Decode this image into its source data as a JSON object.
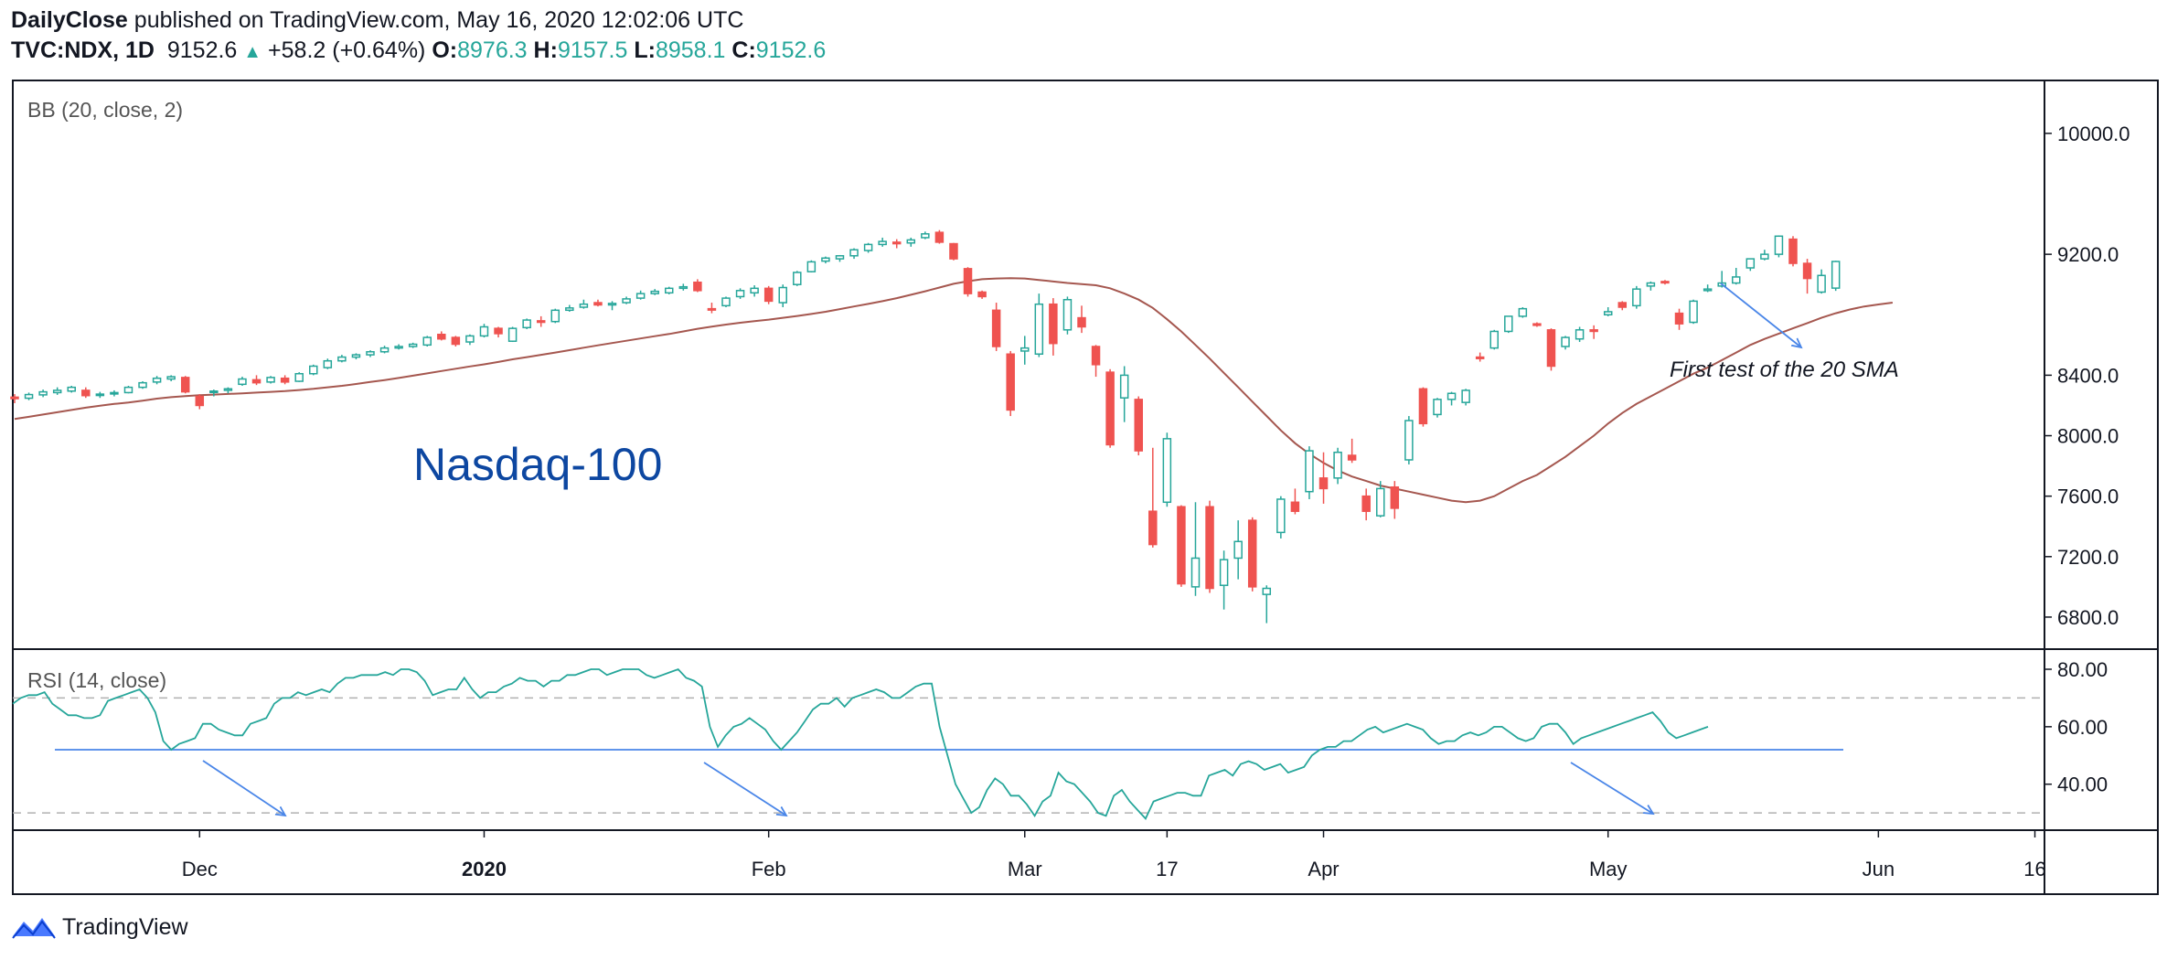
{
  "header": {
    "publisher": "DailyClose",
    "published_text": "published on TradingView.com, May 16, 2020 12:02:06 UTC",
    "symbol": "TVC:NDX, 1D",
    "last": "9152.6",
    "change": "+58.2 (+0.64%)",
    "o_label": "O:",
    "o_value": "8976.3",
    "h_label": "H:",
    "h_value": "9157.5",
    "l_label": "L:",
    "l_value": "8958.1",
    "c_label": "C:",
    "c_value": "9152.6"
  },
  "footer": {
    "brand": "TradingView"
  },
  "colors": {
    "up": "#26a69a",
    "down": "#ef5350",
    "sma": "#a5574f",
    "rsi": "#26a69a",
    "arrow": "#4a86e8",
    "guide": "#4a86e8",
    "title": "#0d47a1"
  },
  "chart_data": [
    {
      "type": "candlestick",
      "indicator_label": "BB (20, close, 2)",
      "title": "Nasdaq-100",
      "annotation": "First test of the 20 SMA",
      "ylim": [
        6600,
        10350
      ],
      "yticks": [
        "10000.0",
        "9200.0",
        "8400.0",
        "8000.0",
        "7600.0",
        "7200.0",
        "6800.0"
      ],
      "ytick_values": [
        10000,
        9200,
        8400,
        8000,
        7600,
        7200,
        6800
      ],
      "x_labels": [
        "Dec",
        "2020",
        "Feb",
        "Mar",
        "17",
        "Apr",
        "May",
        "Jun",
        "16"
      ],
      "x_label_days": [
        13,
        33,
        53,
        71,
        81,
        92,
        112,
        131,
        142
      ],
      "candles": [
        {
          "o": 8255,
          "h": 8275,
          "l": 8215,
          "c": 8245
        },
        {
          "o": 8248,
          "h": 8285,
          "l": 8235,
          "c": 8272
        },
        {
          "o": 8270,
          "h": 8305,
          "l": 8255,
          "c": 8290
        },
        {
          "o": 8285,
          "h": 8320,
          "l": 8270,
          "c": 8300
        },
        {
          "o": 8295,
          "h": 8330,
          "l": 8285,
          "c": 8320
        },
        {
          "o": 8300,
          "h": 8320,
          "l": 8250,
          "c": 8265
        },
        {
          "o": 8270,
          "h": 8290,
          "l": 8250,
          "c": 8275
        },
        {
          "o": 8280,
          "h": 8300,
          "l": 8260,
          "c": 8285
        },
        {
          "o": 8285,
          "h": 8330,
          "l": 8280,
          "c": 8320
        },
        {
          "o": 8320,
          "h": 8360,
          "l": 8310,
          "c": 8350
        },
        {
          "o": 8355,
          "h": 8395,
          "l": 8340,
          "c": 8380
        },
        {
          "o": 8375,
          "h": 8400,
          "l": 8360,
          "c": 8390
        },
        {
          "o": 8385,
          "h": 8395,
          "l": 8280,
          "c": 8290
        },
        {
          "o": 8260,
          "h": 8275,
          "l": 8175,
          "c": 8200
        },
        {
          "o": 8290,
          "h": 8305,
          "l": 8260,
          "c": 8295
        },
        {
          "o": 8300,
          "h": 8320,
          "l": 8280,
          "c": 8310
        },
        {
          "o": 8340,
          "h": 8390,
          "l": 8330,
          "c": 8375
        },
        {
          "o": 8370,
          "h": 8400,
          "l": 8335,
          "c": 8350
        },
        {
          "o": 8355,
          "h": 8395,
          "l": 8345,
          "c": 8385
        },
        {
          "o": 8380,
          "h": 8400,
          "l": 8340,
          "c": 8355
        },
        {
          "o": 8360,
          "h": 8420,
          "l": 8355,
          "c": 8410
        },
        {
          "o": 8410,
          "h": 8470,
          "l": 8400,
          "c": 8460
        },
        {
          "o": 8450,
          "h": 8510,
          "l": 8440,
          "c": 8495
        },
        {
          "o": 8495,
          "h": 8535,
          "l": 8485,
          "c": 8520
        },
        {
          "o": 8520,
          "h": 8545,
          "l": 8505,
          "c": 8535
        },
        {
          "o": 8535,
          "h": 8565,
          "l": 8520,
          "c": 8555
        },
        {
          "o": 8555,
          "h": 8595,
          "l": 8545,
          "c": 8580
        },
        {
          "o": 8580,
          "h": 8605,
          "l": 8570,
          "c": 8590
        },
        {
          "o": 8590,
          "h": 8615,
          "l": 8580,
          "c": 8605
        },
        {
          "o": 8600,
          "h": 8660,
          "l": 8590,
          "c": 8650
        },
        {
          "o": 8670,
          "h": 8690,
          "l": 8630,
          "c": 8640
        },
        {
          "o": 8650,
          "h": 8660,
          "l": 8590,
          "c": 8605
        },
        {
          "o": 8620,
          "h": 8670,
          "l": 8600,
          "c": 8660
        },
        {
          "o": 8660,
          "h": 8740,
          "l": 8650,
          "c": 8720
        },
        {
          "o": 8710,
          "h": 8720,
          "l": 8650,
          "c": 8675
        },
        {
          "o": 8625,
          "h": 8720,
          "l": 8620,
          "c": 8710
        },
        {
          "o": 8715,
          "h": 8775,
          "l": 8705,
          "c": 8765
        },
        {
          "o": 8760,
          "h": 8790,
          "l": 8720,
          "c": 8750
        },
        {
          "o": 8755,
          "h": 8840,
          "l": 8745,
          "c": 8830
        },
        {
          "o": 8830,
          "h": 8865,
          "l": 8820,
          "c": 8845
        },
        {
          "o": 8850,
          "h": 8900,
          "l": 8840,
          "c": 8870
        },
        {
          "o": 8880,
          "h": 8900,
          "l": 8855,
          "c": 8865
        },
        {
          "o": 8865,
          "h": 8890,
          "l": 8830,
          "c": 8875
        },
        {
          "o": 8880,
          "h": 8920,
          "l": 8870,
          "c": 8905
        },
        {
          "o": 8910,
          "h": 8960,
          "l": 8900,
          "c": 8940
        },
        {
          "o": 8940,
          "h": 8970,
          "l": 8930,
          "c": 8955
        },
        {
          "o": 8945,
          "h": 8985,
          "l": 8935,
          "c": 8975
        },
        {
          "o": 8975,
          "h": 9005,
          "l": 8960,
          "c": 8985
        },
        {
          "o": 9015,
          "h": 9035,
          "l": 8950,
          "c": 8960
        },
        {
          "o": 8840,
          "h": 8880,
          "l": 8810,
          "c": 8835
        },
        {
          "o": 8860,
          "h": 8920,
          "l": 8850,
          "c": 8910
        },
        {
          "o": 8920,
          "h": 8975,
          "l": 8905,
          "c": 8960
        },
        {
          "o": 8945,
          "h": 8995,
          "l": 8920,
          "c": 8975
        },
        {
          "o": 8975,
          "h": 8990,
          "l": 8870,
          "c": 8890
        },
        {
          "o": 8880,
          "h": 9000,
          "l": 8850,
          "c": 8980
        },
        {
          "o": 9000,
          "h": 9090,
          "l": 8990,
          "c": 9080
        },
        {
          "o": 9085,
          "h": 9160,
          "l": 9080,
          "c": 9150
        },
        {
          "o": 9155,
          "h": 9185,
          "l": 9140,
          "c": 9175
        },
        {
          "o": 9170,
          "h": 9195,
          "l": 9150,
          "c": 9190
        },
        {
          "o": 9190,
          "h": 9240,
          "l": 9170,
          "c": 9230
        },
        {
          "o": 9225,
          "h": 9275,
          "l": 9210,
          "c": 9265
        },
        {
          "o": 9265,
          "h": 9310,
          "l": 9250,
          "c": 9285
        },
        {
          "o": 9280,
          "h": 9300,
          "l": 9240,
          "c": 9270
        },
        {
          "o": 9275,
          "h": 9310,
          "l": 9250,
          "c": 9295
        },
        {
          "o": 9310,
          "h": 9350,
          "l": 9300,
          "c": 9335
        },
        {
          "o": 9345,
          "h": 9360,
          "l": 9270,
          "c": 9280
        },
        {
          "o": 9270,
          "h": 9275,
          "l": 9160,
          "c": 9170
        },
        {
          "o": 9105,
          "h": 9115,
          "l": 8920,
          "c": 8940
        },
        {
          "o": 8950,
          "h": 8960,
          "l": 8905,
          "c": 8920
        },
        {
          "o": 8830,
          "h": 8880,
          "l": 8560,
          "c": 8590
        },
        {
          "o": 8540,
          "h": 8560,
          "l": 8130,
          "c": 8170
        },
        {
          "o": 8560,
          "h": 8660,
          "l": 8470,
          "c": 8580
        },
        {
          "o": 8540,
          "h": 8940,
          "l": 8520,
          "c": 8870
        },
        {
          "o": 8870,
          "h": 8910,
          "l": 8530,
          "c": 8610
        },
        {
          "o": 8700,
          "h": 8920,
          "l": 8670,
          "c": 8900
        },
        {
          "o": 8780,
          "h": 8860,
          "l": 8680,
          "c": 8720
        },
        {
          "o": 8590,
          "h": 8600,
          "l": 8390,
          "c": 8470
        },
        {
          "o": 8420,
          "h": 8440,
          "l": 7920,
          "c": 7940
        },
        {
          "o": 8250,
          "h": 8460,
          "l": 8090,
          "c": 8400
        },
        {
          "o": 8240,
          "h": 8260,
          "l": 7870,
          "c": 7900
        },
        {
          "o": 7500,
          "h": 7920,
          "l": 7260,
          "c": 7280
        },
        {
          "o": 7560,
          "h": 8020,
          "l": 7530,
          "c": 7980
        },
        {
          "o": 7530,
          "h": 7540,
          "l": 7000,
          "c": 7020
        },
        {
          "o": 7000,
          "h": 7560,
          "l": 6940,
          "c": 7190
        },
        {
          "o": 7530,
          "h": 7570,
          "l": 6960,
          "c": 6990
        },
        {
          "o": 7010,
          "h": 7240,
          "l": 6850,
          "c": 7180
        },
        {
          "o": 7190,
          "h": 7440,
          "l": 7050,
          "c": 7300
        },
        {
          "o": 7440,
          "h": 7460,
          "l": 6970,
          "c": 7000
        },
        {
          "o": 6950,
          "h": 7010,
          "l": 6760,
          "c": 6990
        },
        {
          "o": 7360,
          "h": 7600,
          "l": 7320,
          "c": 7580
        },
        {
          "o": 7560,
          "h": 7650,
          "l": 7480,
          "c": 7500
        },
        {
          "o": 7630,
          "h": 7930,
          "l": 7580,
          "c": 7900
        },
        {
          "o": 7720,
          "h": 7890,
          "l": 7550,
          "c": 7650
        },
        {
          "o": 7720,
          "h": 7920,
          "l": 7680,
          "c": 7890
        },
        {
          "o": 7870,
          "h": 7980,
          "l": 7820,
          "c": 7840
        },
        {
          "o": 7600,
          "h": 7650,
          "l": 7440,
          "c": 7500
        },
        {
          "o": 7470,
          "h": 7700,
          "l": 7460,
          "c": 7650
        },
        {
          "o": 7660,
          "h": 7700,
          "l": 7450,
          "c": 7520
        },
        {
          "o": 7840,
          "h": 8130,
          "l": 7810,
          "c": 8100
        },
        {
          "o": 8310,
          "h": 8320,
          "l": 8060,
          "c": 8080
        },
        {
          "o": 8140,
          "h": 8250,
          "l": 8120,
          "c": 8240
        },
        {
          "o": 8240,
          "h": 8290,
          "l": 8200,
          "c": 8280
        },
        {
          "o": 8220,
          "h": 8310,
          "l": 8200,
          "c": 8300
        },
        {
          "o": 8520,
          "h": 8550,
          "l": 8490,
          "c": 8510
        },
        {
          "o": 8580,
          "h": 8700,
          "l": 8570,
          "c": 8690
        },
        {
          "o": 8690,
          "h": 8790,
          "l": 8680,
          "c": 8790
        },
        {
          "o": 8790,
          "h": 8850,
          "l": 8780,
          "c": 8840
        },
        {
          "o": 8740,
          "h": 8750,
          "l": 8720,
          "c": 8730
        },
        {
          "o": 8700,
          "h": 8710,
          "l": 8430,
          "c": 8460
        },
        {
          "o": 8590,
          "h": 8660,
          "l": 8570,
          "c": 8650
        },
        {
          "o": 8640,
          "h": 8720,
          "l": 8620,
          "c": 8700
        },
        {
          "o": 8700,
          "h": 8730,
          "l": 8640,
          "c": 8690
        },
        {
          "o": 8800,
          "h": 8850,
          "l": 8790,
          "c": 8820
        },
        {
          "o": 8880,
          "h": 8890,
          "l": 8830,
          "c": 8850
        },
        {
          "o": 8860,
          "h": 8990,
          "l": 8840,
          "c": 8970
        },
        {
          "o": 8990,
          "h": 9020,
          "l": 8960,
          "c": 9010
        },
        {
          "o": 9020,
          "h": 9030,
          "l": 9000,
          "c": 9015
        },
        {
          "o": 8810,
          "h": 8840,
          "l": 8700,
          "c": 8740
        },
        {
          "o": 8750,
          "h": 8900,
          "l": 8740,
          "c": 8890
        },
        {
          "o": 8960,
          "h": 9000,
          "l": 8950,
          "c": 8970
        },
        {
          "o": 8990,
          "h": 9090,
          "l": 8980,
          "c": 9010
        },
        {
          "o": 9010,
          "h": 9110,
          "l": 9000,
          "c": 9050
        },
        {
          "o": 9110,
          "h": 9170,
          "l": 9090,
          "c": 9170
        },
        {
          "o": 9170,
          "h": 9230,
          "l": 9160,
          "c": 9200
        },
        {
          "o": 9200,
          "h": 9325,
          "l": 9180,
          "c": 9320
        },
        {
          "o": 9300,
          "h": 9320,
          "l": 9120,
          "c": 9140
        },
        {
          "o": 9140,
          "h": 9170,
          "l": 8940,
          "c": 9040
        },
        {
          "o": 8950,
          "h": 9100,
          "l": 8940,
          "c": 9060
        },
        {
          "o": 8976.3,
          "h": 9157.5,
          "l": 8958.1,
          "c": 9152.6
        }
      ],
      "sma20": [
        8110,
        8125,
        8140,
        8155,
        8170,
        8185,
        8198,
        8210,
        8220,
        8232,
        8245,
        8255,
        8262,
        8268,
        8272,
        8276,
        8280,
        8285,
        8290,
        8295,
        8302,
        8310,
        8320,
        8330,
        8342,
        8355,
        8368,
        8382,
        8397,
        8412,
        8428,
        8443,
        8458,
        8472,
        8488,
        8505,
        8520,
        8535,
        8550,
        8566,
        8582,
        8598,
        8613,
        8628,
        8643,
        8658,
        8673,
        8690,
        8707,
        8722,
        8735,
        8747,
        8758,
        8768,
        8780,
        8792,
        8805,
        8820,
        8837,
        8855,
        8872,
        8890,
        8910,
        8932,
        8955,
        8980,
        9005,
        9022,
        9035,
        9040,
        9042,
        9040,
        9030,
        9020,
        9010,
        9003,
        8995,
        8975,
        8940,
        8900,
        8845,
        8770,
        8690,
        8600,
        8510,
        8415,
        8320,
        8225,
        8130,
        8035,
        7950,
        7880,
        7820,
        7770,
        7730,
        7700,
        7670,
        7650,
        7630,
        7610,
        7590,
        7570,
        7560,
        7570,
        7600,
        7650,
        7700,
        7740,
        7800,
        7860,
        7930,
        8000,
        8080,
        8150,
        8210,
        8260,
        8310,
        8360,
        8410,
        8450,
        8500,
        8550,
        8600,
        8640,
        8675,
        8710,
        8745,
        8780,
        8810,
        8835,
        8855,
        8868,
        8880
      ]
    },
    {
      "type": "line",
      "indicator_label": "RSI (14, close)",
      "ylim": [
        24,
        87
      ],
      "yticks": [
        "80.00",
        "60.00",
        "40.00"
      ],
      "ytick_values": [
        80,
        60,
        40
      ],
      "band_levels": [
        70,
        30
      ],
      "support_level": 52,
      "values": [
        68,
        70,
        71,
        71,
        72,
        68,
        66,
        64,
        64,
        63,
        63,
        64,
        69,
        70,
        71,
        72,
        73,
        70,
        65,
        55,
        52,
        54,
        55,
        56,
        61,
        61,
        59,
        58,
        57,
        57,
        61,
        62,
        63,
        68,
        70,
        70,
        72,
        71,
        72,
        73,
        72,
        75,
        77,
        77,
        78,
        78,
        78,
        79,
        78,
        80,
        80,
        79,
        76,
        71,
        72,
        73,
        73,
        77,
        73,
        70,
        72,
        72,
        74,
        75,
        77,
        76,
        76,
        74,
        76,
        76,
        78,
        78,
        79,
        80,
        80,
        78,
        79,
        80,
        80,
        80,
        78,
        77,
        78,
        79,
        80,
        77,
        76,
        74,
        60,
        53,
        57,
        60,
        61,
        63,
        61,
        59,
        55,
        52,
        55,
        58,
        62,
        66,
        68,
        68,
        70,
        67,
        70,
        71,
        72,
        73,
        72,
        70,
        70,
        72,
        74,
        75,
        75,
        60,
        50,
        40,
        35,
        30,
        32,
        38,
        42,
        40,
        36,
        36,
        33,
        29,
        34,
        36,
        44,
        41,
        40,
        37,
        34,
        30,
        29,
        36,
        38,
        34,
        31,
        28,
        34,
        35,
        36,
        37,
        37,
        36,
        36,
        43,
        44,
        45,
        43,
        47,
        48,
        47,
        45,
        46,
        47,
        44,
        45,
        46,
        50,
        52,
        53,
        53,
        55,
        55,
        57,
        59,
        60,
        58,
        59,
        60,
        61,
        60,
        59,
        56,
        54,
        55,
        55,
        57,
        58,
        57,
        58,
        60,
        60,
        58,
        56,
        55,
        56,
        60,
        61,
        61,
        58,
        54,
        56,
        57,
        58,
        59,
        60,
        61,
        62,
        63,
        64,
        65,
        62,
        58,
        56,
        57,
        58,
        59,
        60
      ]
    }
  ]
}
